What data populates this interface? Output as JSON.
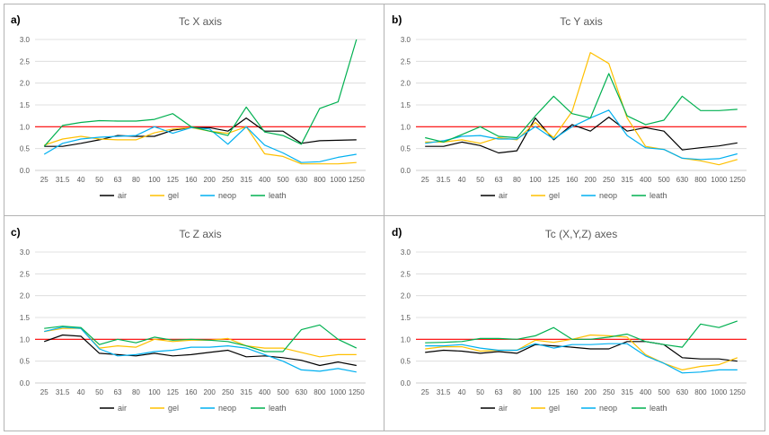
{
  "chart_data": [
    {
      "type": "line",
      "panel_label": "a)",
      "title": "Tc X axis",
      "categories": [
        "25",
        "31.5",
        "40",
        "50",
        "63",
        "80",
        "100",
        "125",
        "160",
        "200",
        "250",
        "315",
        "400",
        "500",
        "630",
        "800",
        "1000",
        "1250"
      ],
      "ylim": [
        0,
        3.0
      ],
      "yticks": [
        "0.0",
        "0.5",
        "1.0",
        "1.5",
        "2.0",
        "2.5",
        "3.0"
      ],
      "reference_line": 1.0,
      "legend_position": "bottom",
      "series": [
        {
          "name": "air",
          "color": "#000000",
          "values": [
            0.55,
            0.55,
            0.62,
            0.7,
            0.8,
            0.78,
            0.78,
            0.92,
            0.98,
            0.98,
            0.9,
            1.2,
            0.9,
            0.9,
            0.62,
            0.68,
            0.69,
            0.7
          ]
        },
        {
          "name": "gel",
          "color": "#FFC000",
          "values": [
            0.58,
            0.72,
            0.78,
            0.72,
            0.7,
            0.7,
            0.86,
            0.95,
            0.98,
            0.9,
            0.85,
            1.0,
            0.38,
            0.32,
            0.15,
            0.15,
            0.15,
            0.18
          ]
        },
        {
          "name": "neop",
          "color": "#00B0F0",
          "values": [
            0.37,
            0.62,
            0.72,
            0.76,
            0.78,
            0.8,
            1.0,
            0.85,
            0.98,
            0.95,
            0.6,
            1.0,
            0.58,
            0.4,
            0.18,
            0.2,
            0.3,
            0.37
          ]
        },
        {
          "name": "leath",
          "color": "#00B050",
          "values": [
            0.55,
            1.03,
            1.1,
            1.14,
            1.13,
            1.13,
            1.17,
            1.3,
            1.0,
            0.9,
            0.8,
            1.45,
            0.88,
            0.8,
            0.6,
            1.42,
            1.57,
            3.0
          ]
        }
      ]
    },
    {
      "type": "line",
      "panel_label": "b)",
      "title": "Tc Y axis",
      "categories": [
        "25",
        "31.5",
        "40",
        "50",
        "63",
        "80",
        "100",
        "125",
        "160",
        "200",
        "250",
        "315",
        "400",
        "500",
        "630",
        "800",
        "1000",
        "1250"
      ],
      "ylim": [
        0,
        3.0
      ],
      "yticks": [
        "0.0",
        "0.5",
        "1.0",
        "1.5",
        "2.0",
        "2.5",
        "3.0"
      ],
      "reference_line": 1.0,
      "legend_position": "bottom",
      "series": [
        {
          "name": "air",
          "color": "#000000",
          "values": [
            0.55,
            0.55,
            0.65,
            0.57,
            0.4,
            0.45,
            1.2,
            0.7,
            1.05,
            0.9,
            1.22,
            0.9,
            0.98,
            0.9,
            0.47,
            0.52,
            0.56,
            0.63
          ]
        },
        {
          "name": "gel",
          "color": "#FFC000",
          "values": [
            0.65,
            0.65,
            0.7,
            0.62,
            0.75,
            0.7,
            1.1,
            0.75,
            1.35,
            2.7,
            2.45,
            1.2,
            0.55,
            0.48,
            0.28,
            0.22,
            0.13,
            0.25
          ]
        },
        {
          "name": "neop",
          "color": "#00B0F0",
          "values": [
            0.62,
            0.68,
            0.78,
            0.8,
            0.72,
            0.72,
            1.0,
            0.72,
            1.0,
            1.2,
            1.38,
            0.8,
            0.52,
            0.48,
            0.28,
            0.25,
            0.27,
            0.38
          ]
        },
        {
          "name": "leath",
          "color": "#00B050",
          "values": [
            0.75,
            0.65,
            0.82,
            1.0,
            0.78,
            0.75,
            1.25,
            1.7,
            1.3,
            1.2,
            2.22,
            1.25,
            1.05,
            1.15,
            1.7,
            1.37,
            1.37,
            1.4
          ]
        }
      ]
    },
    {
      "type": "line",
      "panel_label": "c)",
      "title": "Tc Z axis",
      "categories": [
        "25",
        "31.5",
        "40",
        "50",
        "63",
        "80",
        "100",
        "125",
        "160",
        "200",
        "250",
        "315",
        "400",
        "500",
        "630",
        "800",
        "1000",
        "1250"
      ],
      "ylim": [
        0,
        3.0
      ],
      "yticks": [
        "0.0",
        "0.5",
        "1.0",
        "1.5",
        "2.0",
        "2.5",
        "3.0"
      ],
      "reference_line": 1.0,
      "legend_position": "bottom",
      "series": [
        {
          "name": "air",
          "color": "#000000",
          "values": [
            0.95,
            1.1,
            1.07,
            0.68,
            0.65,
            0.62,
            0.68,
            0.62,
            0.65,
            0.7,
            0.75,
            0.6,
            0.62,
            0.58,
            0.52,
            0.4,
            0.48,
            0.4
          ]
        },
        {
          "name": "gel",
          "color": "#FFC000",
          "values": [
            1.18,
            1.25,
            1.25,
            0.8,
            0.85,
            0.82,
            1.0,
            0.95,
            0.98,
            0.98,
            1.02,
            0.85,
            0.8,
            0.8,
            0.7,
            0.6,
            0.65,
            0.65
          ]
        },
        {
          "name": "neop",
          "color": "#00B0F0",
          "values": [
            1.18,
            1.28,
            1.25,
            0.78,
            0.62,
            0.65,
            0.72,
            0.75,
            0.82,
            0.82,
            0.85,
            0.8,
            0.65,
            0.5,
            0.3,
            0.27,
            0.33,
            0.25
          ]
        },
        {
          "name": "leath",
          "color": "#00B050",
          "values": [
            1.25,
            1.3,
            1.27,
            0.88,
            1.0,
            0.92,
            1.05,
            0.98,
            1.0,
            0.98,
            0.95,
            0.85,
            0.72,
            0.72,
            1.22,
            1.33,
            1.0,
            0.8
          ]
        }
      ]
    },
    {
      "type": "line",
      "panel_label": "d)",
      "title": "Tc (X,Y,Z) axes",
      "categories": [
        "25",
        "31.5",
        "40",
        "50",
        "63",
        "80",
        "100",
        "125",
        "160",
        "200",
        "250",
        "315",
        "400",
        "500",
        "630",
        "800",
        "1000",
        "1250"
      ],
      "ylim": [
        0,
        3.0
      ],
      "yticks": [
        "0.0",
        "0.5",
        "1.0",
        "1.5",
        "2.0",
        "2.5",
        "3.0"
      ],
      "reference_line": 1.0,
      "legend_position": "bottom",
      "series": [
        {
          "name": "air",
          "color": "#000000",
          "values": [
            0.7,
            0.75,
            0.73,
            0.68,
            0.72,
            0.68,
            0.88,
            0.85,
            0.82,
            0.78,
            0.78,
            0.95,
            0.95,
            0.88,
            0.58,
            0.55,
            0.55,
            0.5
          ]
        },
        {
          "name": "gel",
          "color": "#FFC000",
          "values": [
            0.78,
            0.83,
            0.83,
            0.73,
            0.75,
            0.75,
            0.98,
            0.93,
            1.0,
            1.1,
            1.08,
            1.05,
            0.65,
            0.45,
            0.3,
            0.38,
            0.42,
            0.58
          ]
        },
        {
          "name": "neop",
          "color": "#00B0F0",
          "values": [
            0.85,
            0.85,
            0.88,
            0.8,
            0.75,
            0.75,
            0.9,
            0.8,
            0.88,
            0.88,
            0.9,
            0.9,
            0.62,
            0.45,
            0.23,
            0.25,
            0.3,
            0.3
          ]
        },
        {
          "name": "leath",
          "color": "#00B050",
          "values": [
            0.92,
            0.93,
            0.95,
            1.02,
            1.02,
            1.0,
            1.08,
            1.27,
            1.0,
            1.0,
            1.05,
            1.12,
            0.95,
            0.88,
            0.82,
            1.35,
            1.27,
            1.42
          ]
        }
      ]
    }
  ]
}
